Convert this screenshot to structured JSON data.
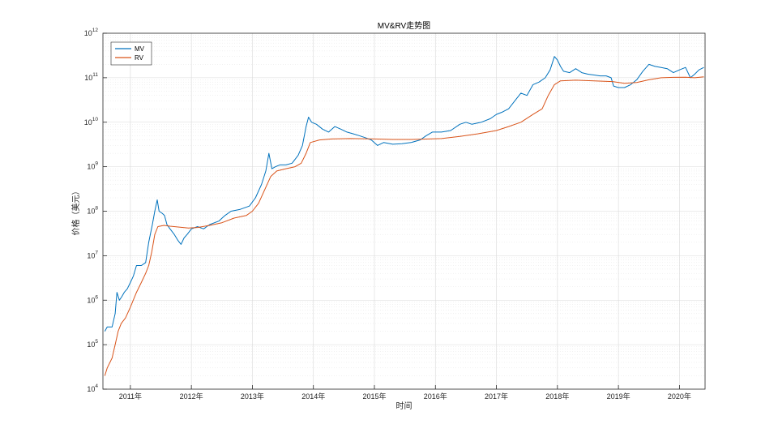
{
  "chart_data": {
    "type": "line",
    "title": "MV&RV走势图",
    "xlabel": "时间",
    "ylabel": "价格（美元）",
    "yscale": "log",
    "xlim": [
      2010.55,
      2020.42
    ],
    "ylim": [
      10000,
      1000000000000
    ],
    "x_ticks": [
      {
        "value": 2011,
        "label": "2011年"
      },
      {
        "value": 2012,
        "label": "2012年"
      },
      {
        "value": 2013,
        "label": "2013年"
      },
      {
        "value": 2014,
        "label": "2014年"
      },
      {
        "value": 2015,
        "label": "2015年"
      },
      {
        "value": 2016,
        "label": "2016年"
      },
      {
        "value": 2017,
        "label": "2017年"
      },
      {
        "value": 2018,
        "label": "2018年"
      },
      {
        "value": 2019,
        "label": "2019年"
      },
      {
        "value": 2020,
        "label": "2020年"
      }
    ],
    "y_ticks": [
      {
        "exp": 4,
        "base": "10",
        "sup": "4"
      },
      {
        "exp": 5,
        "base": "10",
        "sup": "5"
      },
      {
        "exp": 6,
        "base": "10",
        "sup": "6"
      },
      {
        "exp": 7,
        "base": "10",
        "sup": "7"
      },
      {
        "exp": 8,
        "base": "10",
        "sup": "8"
      },
      {
        "exp": 9,
        "base": "10",
        "sup": "9"
      },
      {
        "exp": 10,
        "base": "10",
        "sup": "10"
      },
      {
        "exp": 11,
        "base": "10",
        "sup": "11"
      },
      {
        "exp": 12,
        "base": "10",
        "sup": "12"
      }
    ],
    "grid": true,
    "legend_position": "top-left",
    "series": [
      {
        "name": "MV",
        "color": "#0072BD",
        "points": [
          [
            2010.58,
            200000
          ],
          [
            2010.62,
            250000
          ],
          [
            2010.7,
            250000
          ],
          [
            2010.75,
            500000
          ],
          [
            2010.78,
            1500000
          ],
          [
            2010.82,
            1000000
          ],
          [
            2010.86,
            1200000
          ],
          [
            2010.9,
            1500000
          ],
          [
            2010.95,
            1800000
          ],
          [
            2011.0,
            2500000
          ],
          [
            2011.05,
            3500000
          ],
          [
            2011.1,
            6000000
          ],
          [
            2011.18,
            6000000
          ],
          [
            2011.25,
            7000000
          ],
          [
            2011.3,
            20000000
          ],
          [
            2011.36,
            50000000
          ],
          [
            2011.4,
            100000000
          ],
          [
            2011.44,
            180000000
          ],
          [
            2011.47,
            100000000
          ],
          [
            2011.52,
            90000000
          ],
          [
            2011.56,
            80000000
          ],
          [
            2011.6,
            50000000
          ],
          [
            2011.65,
            40000000
          ],
          [
            2011.72,
            30000000
          ],
          [
            2011.78,
            22000000
          ],
          [
            2011.83,
            18000000
          ],
          [
            2011.88,
            25000000
          ],
          [
            2011.93,
            30000000
          ],
          [
            2012.0,
            40000000
          ],
          [
            2012.1,
            45000000
          ],
          [
            2012.2,
            40000000
          ],
          [
            2012.3,
            50000000
          ],
          [
            2012.45,
            60000000
          ],
          [
            2012.55,
            80000000
          ],
          [
            2012.65,
            100000000
          ],
          [
            2012.8,
            110000000
          ],
          [
            2012.95,
            130000000
          ],
          [
            2013.05,
            200000000
          ],
          [
            2013.15,
            400000000
          ],
          [
            2013.22,
            800000000
          ],
          [
            2013.27,
            2000000000
          ],
          [
            2013.32,
            900000000
          ],
          [
            2013.38,
            1000000000
          ],
          [
            2013.45,
            1100000000
          ],
          [
            2013.55,
            1100000000
          ],
          [
            2013.65,
            1200000000
          ],
          [
            2013.75,
            1800000000
          ],
          [
            2013.82,
            3000000000
          ],
          [
            2013.88,
            8000000000
          ],
          [
            2013.92,
            13000000000
          ],
          [
            2013.97,
            10000000000
          ],
          [
            2014.05,
            9000000000
          ],
          [
            2014.15,
            7000000000
          ],
          [
            2014.25,
            6000000000
          ],
          [
            2014.35,
            8000000000
          ],
          [
            2014.45,
            7000000000
          ],
          [
            2014.55,
            6000000000
          ],
          [
            2014.65,
            5500000000
          ],
          [
            2014.75,
            5000000000
          ],
          [
            2014.85,
            4500000000
          ],
          [
            2014.95,
            4000000000
          ],
          [
            2015.05,
            3000000000
          ],
          [
            2015.15,
            3500000000
          ],
          [
            2015.3,
            3200000000
          ],
          [
            2015.45,
            3300000000
          ],
          [
            2015.6,
            3500000000
          ],
          [
            2015.75,
            4000000000
          ],
          [
            2015.85,
            5000000000
          ],
          [
            2015.95,
            6000000000
          ],
          [
            2016.1,
            6000000000
          ],
          [
            2016.25,
            6500000000
          ],
          [
            2016.4,
            9000000000
          ],
          [
            2016.5,
            10000000000
          ],
          [
            2016.6,
            9000000000
          ],
          [
            2016.75,
            10000000000
          ],
          [
            2016.9,
            12000000000
          ],
          [
            2017.0,
            15000000000
          ],
          [
            2017.1,
            17000000000
          ],
          [
            2017.2,
            20000000000
          ],
          [
            2017.3,
            30000000000
          ],
          [
            2017.4,
            45000000000
          ],
          [
            2017.5,
            40000000000
          ],
          [
            2017.6,
            70000000000
          ],
          [
            2017.7,
            80000000000
          ],
          [
            2017.8,
            100000000000
          ],
          [
            2017.88,
            150000000000
          ],
          [
            2017.95,
            300000000000
          ],
          [
            2018.0,
            250000000000
          ],
          [
            2018.05,
            180000000000
          ],
          [
            2018.1,
            140000000000
          ],
          [
            2018.2,
            130000000000
          ],
          [
            2018.3,
            160000000000
          ],
          [
            2018.4,
            130000000000
          ],
          [
            2018.5,
            120000000000
          ],
          [
            2018.6,
            115000000000
          ],
          [
            2018.7,
            110000000000
          ],
          [
            2018.8,
            110000000000
          ],
          [
            2018.88,
            100000000000
          ],
          [
            2018.92,
            65000000000
          ],
          [
            2019.0,
            60000000000
          ],
          [
            2019.1,
            60000000000
          ],
          [
            2019.2,
            70000000000
          ],
          [
            2019.3,
            90000000000
          ],
          [
            2019.4,
            140000000000
          ],
          [
            2019.5,
            200000000000
          ],
          [
            2019.6,
            180000000000
          ],
          [
            2019.7,
            170000000000
          ],
          [
            2019.8,
            160000000000
          ],
          [
            2019.9,
            130000000000
          ],
          [
            2020.0,
            150000000000
          ],
          [
            2020.1,
            170000000000
          ],
          [
            2020.18,
            100000000000
          ],
          [
            2020.25,
            120000000000
          ],
          [
            2020.32,
            150000000000
          ],
          [
            2020.4,
            170000000000
          ]
        ]
      },
      {
        "name": "RV",
        "color": "#D95319",
        "points": [
          [
            2010.58,
            20000
          ],
          [
            2010.62,
            30000
          ],
          [
            2010.7,
            50000
          ],
          [
            2010.75,
            100000
          ],
          [
            2010.8,
            200000
          ],
          [
            2010.85,
            300000
          ],
          [
            2010.92,
            400000
          ],
          [
            2011.0,
            700000
          ],
          [
            2011.1,
            1500000
          ],
          [
            2011.18,
            2500000
          ],
          [
            2011.25,
            4000000
          ],
          [
            2011.3,
            6000000
          ],
          [
            2011.35,
            12000000
          ],
          [
            2011.4,
            30000000
          ],
          [
            2011.45,
            45000000
          ],
          [
            2011.55,
            48000000
          ],
          [
            2011.65,
            46000000
          ],
          [
            2011.8,
            44000000
          ],
          [
            2011.95,
            42000000
          ],
          [
            2012.1,
            43000000
          ],
          [
            2012.3,
            48000000
          ],
          [
            2012.5,
            55000000
          ],
          [
            2012.7,
            70000000
          ],
          [
            2012.9,
            80000000
          ],
          [
            2013.0,
            100000000
          ],
          [
            2013.1,
            150000000
          ],
          [
            2013.2,
            300000000
          ],
          [
            2013.3,
            600000000
          ],
          [
            2013.4,
            800000000
          ],
          [
            2013.55,
            900000000
          ],
          [
            2013.7,
            1000000000
          ],
          [
            2013.8,
            1200000000
          ],
          [
            2013.88,
            2000000000
          ],
          [
            2013.95,
            3500000000
          ],
          [
            2014.1,
            4000000000
          ],
          [
            2014.3,
            4200000000
          ],
          [
            2014.6,
            4300000000
          ],
          [
            2015.0,
            4200000000
          ],
          [
            2015.3,
            4100000000
          ],
          [
            2015.6,
            4100000000
          ],
          [
            2015.9,
            4200000000
          ],
          [
            2016.1,
            4300000000
          ],
          [
            2016.4,
            4800000000
          ],
          [
            2016.7,
            5500000000
          ],
          [
            2017.0,
            6500000000
          ],
          [
            2017.2,
            8000000000
          ],
          [
            2017.4,
            10000000000
          ],
          [
            2017.6,
            15000000000
          ],
          [
            2017.75,
            20000000000
          ],
          [
            2017.85,
            40000000000
          ],
          [
            2017.95,
            70000000000
          ],
          [
            2018.05,
            85000000000
          ],
          [
            2018.3,
            88000000000
          ],
          [
            2018.6,
            85000000000
          ],
          [
            2018.9,
            82000000000
          ],
          [
            2019.1,
            75000000000
          ],
          [
            2019.3,
            78000000000
          ],
          [
            2019.5,
            90000000000
          ],
          [
            2019.7,
            100000000000
          ],
          [
            2019.9,
            102000000000
          ],
          [
            2020.1,
            103000000000
          ],
          [
            2020.25,
            100000000000
          ],
          [
            2020.4,
            105000000000
          ]
        ]
      }
    ]
  }
}
